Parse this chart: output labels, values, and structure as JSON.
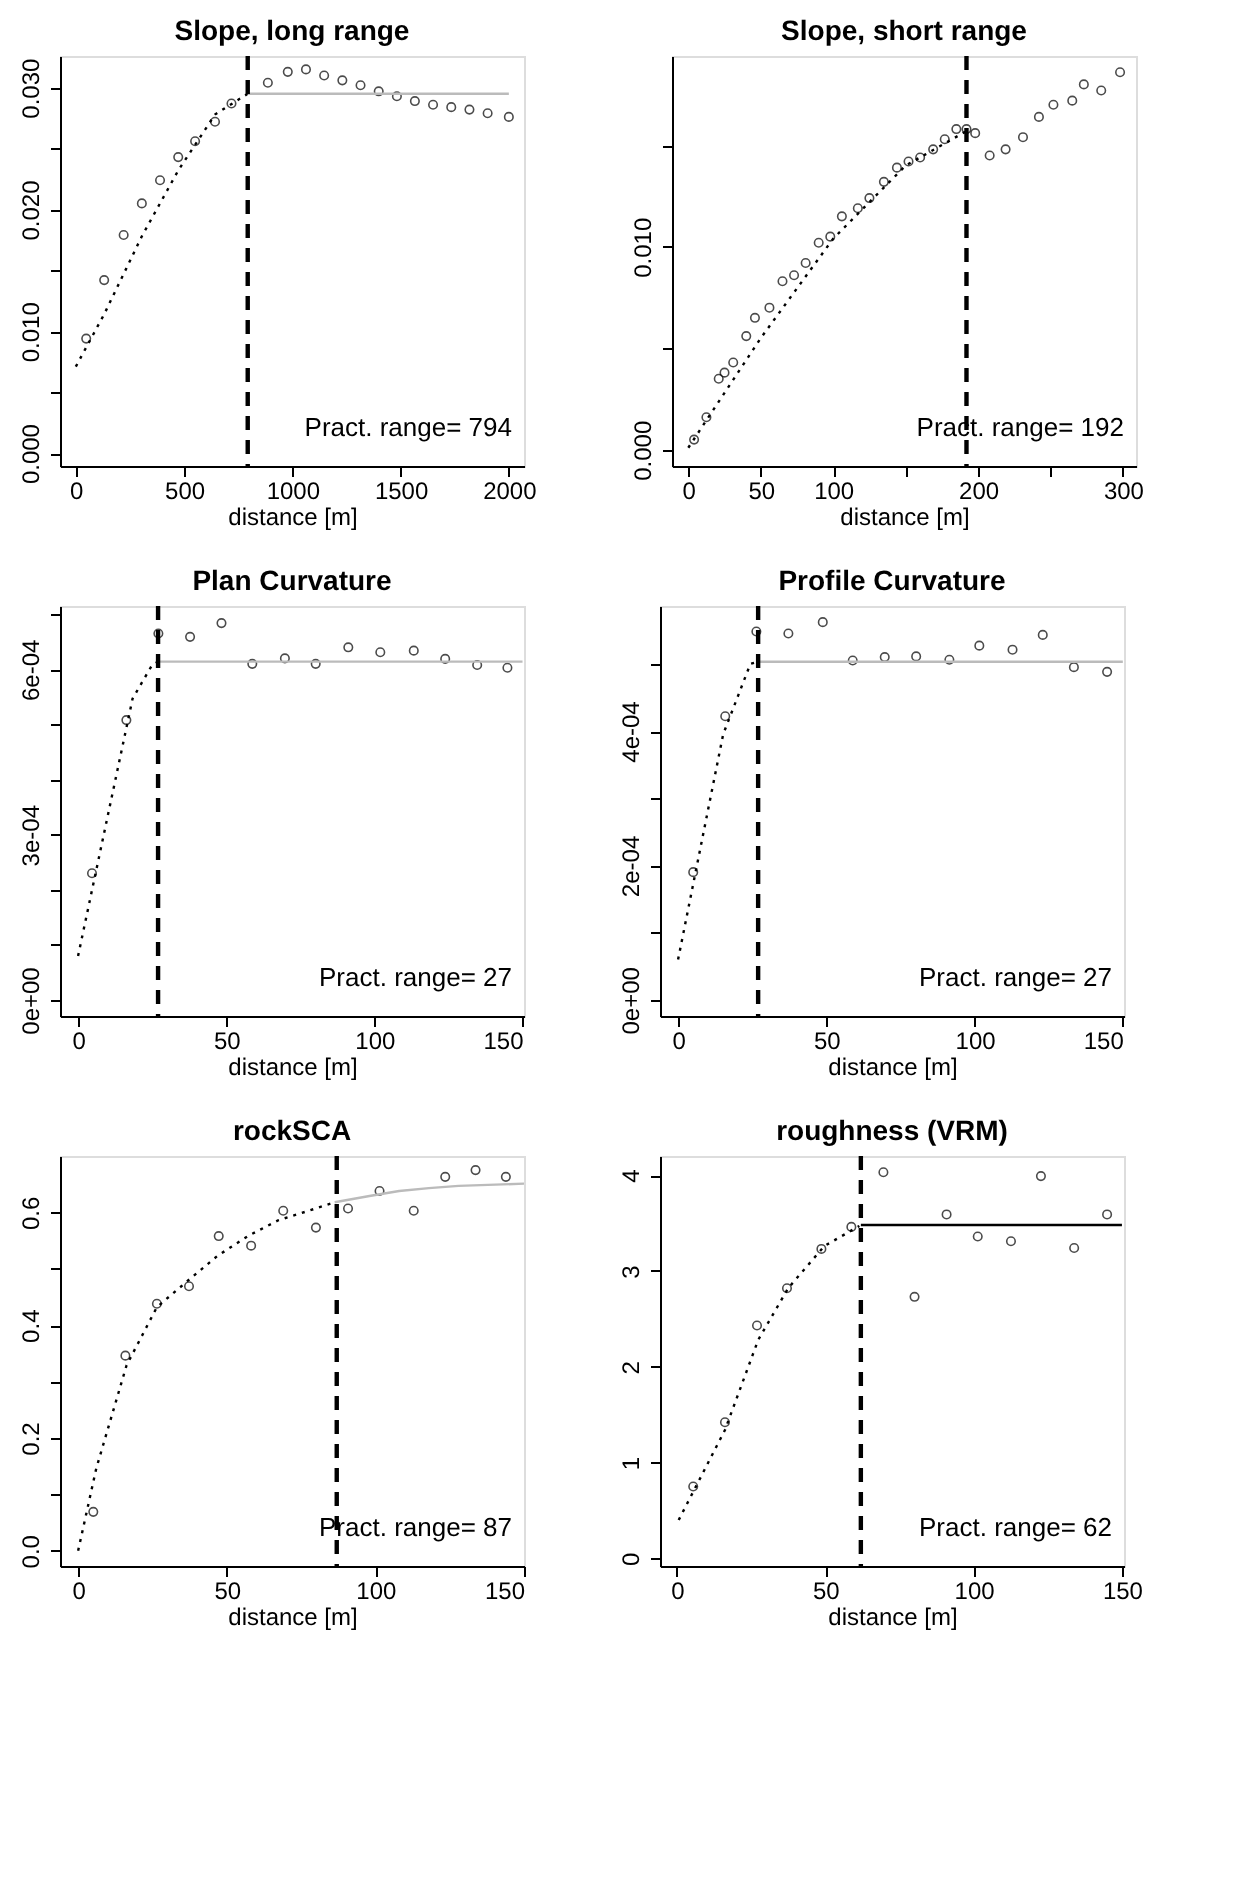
{
  "chart_data": [
    {
      "type": "scatter",
      "title": "Slope, long range",
      "xlabel": "distance [m]",
      "grid": false,
      "legend": false,
      "xlim": [
        -73,
        2070
      ],
      "xticks": [
        0,
        500,
        1000,
        1500,
        2000
      ],
      "ylim": [
        -0.00106,
        0.0326
      ],
      "yticks": [
        {
          "value": 0,
          "label": "0.000"
        },
        {
          "value": 0.005,
          "label": null
        },
        {
          "value": 0.01,
          "label": "0.010"
        },
        {
          "value": 0.015,
          "label": null
        },
        {
          "value": 0.02,
          "label": "0.020"
        },
        {
          "value": 0.025,
          "label": null
        },
        {
          "value": 0.03,
          "label": "0.030"
        }
      ],
      "series": [
        {
          "type": "scatter",
          "color": "#000000",
          "marker": "circle",
          "x": [
            48,
            131,
            221,
            305,
            389,
            473,
            551,
            643,
            719,
            887,
            979,
            1063,
            1147,
            1231,
            1315,
            1399,
            1483,
            1566,
            1650,
            1734,
            1818,
            1902,
            2000
          ],
          "values": [
            0.0094,
            0.0142,
            0.0179,
            0.0205,
            0.0224,
            0.0243,
            0.0256,
            0.0272,
            0.0287,
            0.0304,
            0.0313,
            0.0315,
            0.031,
            0.0306,
            0.0302,
            0.0297,
            0.0293,
            0.0289,
            0.0286,
            0.0284,
            0.0282,
            0.0279,
            0.0276
          ]
        },
        {
          "type": "line",
          "color": "#000000",
          "line_style": "dotted",
          "x": [
            0,
            131,
            305,
            473,
            643,
            794
          ],
          "values": [
            0.0071,
            0.0114,
            0.0178,
            0.0232,
            0.0278,
            0.0295
          ]
        },
        {
          "type": "line",
          "color": "#bbbbbb",
          "line_style": "solid",
          "x": [
            794,
            2000
          ],
          "values": [
            0.0295,
            0.0295
          ]
        }
      ],
      "ref_lines": [
        {
          "axis": "x",
          "value": 794,
          "color": "#000000",
          "line_style": "dashed"
        }
      ],
      "annotations": [
        "Pract. range=  794"
      ]
    },
    {
      "type": "scatter",
      "title": "Slope, short range",
      "xlabel": "distance [m]",
      "grid": false,
      "legend": false,
      "xlim": [
        -11.25,
        309
      ],
      "xticks": [
        0,
        50,
        100,
        {
          "value": 150,
          "label": null
        },
        200,
        {
          "value": 250,
          "label": null
        },
        300
      ],
      "ylim": [
        -0.0008,
        0.0194
      ],
      "yticks": [
        {
          "value": 0,
          "label": "0.000"
        },
        {
          "value": 0.005,
          "label": null
        },
        {
          "value": 0.01,
          "label": "0.010"
        },
        {
          "value": 0.015,
          "label": null
        }
      ],
      "series": [
        {
          "type": "scatter",
          "color": "#000000",
          "marker": "circle",
          "x": [
            4,
            12.5,
            21,
            25,
            31,
            40,
            46,
            56,
            65,
            73,
            81,
            90,
            98,
            106,
            117,
            125,
            135,
            144,
            152,
            160,
            169,
            177,
            185,
            192,
            198,
            208,
            219,
            231,
            242,
            252,
            265,
            273,
            285,
            298
          ],
          "values": [
            0.0005,
            0.0016,
            0.0035,
            0.0038,
            0.0043,
            0.0056,
            0.0065,
            0.007,
            0.0083,
            0.0086,
            0.0092,
            0.0102,
            0.0105,
            0.0115,
            0.0119,
            0.0124,
            0.0132,
            0.0139,
            0.0142,
            0.0144,
            0.0148,
            0.0153,
            0.0158,
            0.0158,
            0.0156,
            0.0145,
            0.0148,
            0.0154,
            0.0164,
            0.017,
            0.0172,
            0.018,
            0.0177,
            0.0186
          ]
        },
        {
          "type": "line",
          "color": "#000000",
          "line_style": "dotted",
          "x": [
            0,
            50,
            100,
            150,
            192
          ],
          "values": [
            0.0001,
            0.0055,
            0.0104,
            0.014,
            0.0157
          ]
        }
      ],
      "ref_lines": [
        {
          "axis": "x",
          "value": 192,
          "color": "#000000",
          "line_style": "dashed"
        }
      ],
      "annotations": [
        "Pract. range=  192"
      ]
    },
    {
      "type": "scatter",
      "title": "Plan Curvature",
      "xlabel": "distance [m]",
      "grid": false,
      "legend": false,
      "xlim": [
        -6.1,
        150.5
      ],
      "xticks": [
        0,
        50,
        100,
        150
      ],
      "ylim": [
        -2.9e-05,
        0.000715
      ],
      "yticks": [
        {
          "value": 0,
          "label": "0e+00"
        },
        {
          "value": 0.0001,
          "label": null
        },
        {
          "value": 0.0002,
          "label": null
        },
        {
          "value": 0.0003,
          "label": "3e-04"
        },
        {
          "value": 0.0004,
          "label": null
        },
        {
          "value": 0.0005,
          "label": null
        },
        {
          "value": 0.0006,
          "label": "6e-04"
        },
        {
          "value": 0.0007,
          "label": null
        }
      ],
      "series": [
        {
          "type": "scatter",
          "color": "#000000",
          "marker": "circle",
          "x": [
            4.7,
            16.3,
            27.1,
            37.8,
            48.4,
            58.8,
            69.8,
            80.2,
            91.2,
            102,
            113.3,
            123.9,
            134.7,
            144.9
          ],
          "values": [
            0.00023,
            0.000508,
            0.000665,
            0.000659,
            0.000684,
            0.00061,
            0.00062,
            0.00061,
            0.00064,
            0.000631,
            0.000634,
            0.000619,
            0.000608,
            0.000603
          ]
        },
        {
          "type": "line",
          "color": "#000000",
          "line_style": "dotted",
          "x": [
            0,
            18.4,
            25,
            27
          ],
          "values": [
            8e-05,
            0.000547,
            0.000608,
            0.000614
          ]
        },
        {
          "type": "line",
          "color": "#bbbbbb",
          "line_style": "solid",
          "x": [
            27,
            150
          ],
          "values": [
            0.000614,
            0.000614
          ]
        }
      ],
      "ref_lines": [
        {
          "axis": "x",
          "value": 27,
          "color": "#000000",
          "line_style": "dashed"
        }
      ],
      "annotations": [
        "Pract. range=  27"
      ]
    },
    {
      "type": "scatter",
      "title": "Profile Curvature",
      "xlabel": "distance [m]",
      "grid": false,
      "legend": false,
      "xlim": [
        -6.1,
        150.4
      ],
      "xticks": [
        0,
        50,
        100,
        150
      ],
      "ylim": [
        -2.4e-05,
        0.000586
      ],
      "yticks": [
        {
          "value": 0,
          "label": "0e+00"
        },
        {
          "value": 0.0001,
          "label": null
        },
        {
          "value": 0.0002,
          "label": "2e-04"
        },
        {
          "value": 0.0003,
          "label": null
        },
        {
          "value": 0.0004,
          "label": "4e-04"
        },
        {
          "value": 0.0005,
          "label": null
        }
      ],
      "series": [
        {
          "type": "scatter",
          "color": "#000000",
          "marker": "circle",
          "x": [
            5.1,
            15.9,
            26.4,
            37.2,
            48.8,
            58.9,
            69.7,
            80.3,
            91.5,
            101.6,
            112.8,
            123,
            133.5,
            144.7
          ],
          "values": [
            0.00019,
            0.000422,
            0.000548,
            0.000545,
            0.000562,
            0.000505,
            0.00051,
            0.000511,
            0.000506,
            0.000527,
            0.000521,
            0.000543,
            0.000495,
            0.000488
          ]
        },
        {
          "type": "line",
          "color": "#000000",
          "line_style": "dotted",
          "x": [
            0,
            15.2,
            24.4,
            27
          ],
          "values": [
            6e-05,
            0.000395,
            0.0005,
            0.000503
          ]
        },
        {
          "type": "line",
          "color": "#bbbbbb",
          "line_style": "solid",
          "x": [
            27,
            150
          ],
          "values": [
            0.000503,
            0.000503
          ]
        }
      ],
      "ref_lines": [
        {
          "axis": "x",
          "value": 27,
          "color": "#000000",
          "line_style": "dashed"
        }
      ],
      "annotations": [
        "Pract. range=  27"
      ]
    },
    {
      "type": "scatter",
      "title": "rockSCA",
      "xlabel": "distance [m]",
      "grid": false,
      "legend": false,
      "xlim": [
        -6.1,
        150
      ],
      "xticks": [
        0,
        50,
        100,
        150
      ],
      "ylim": [
        -0.027,
        0.7
      ],
      "yticks": [
        {
          "value": 0,
          "label": "0.0"
        },
        {
          "value": 0.1,
          "label": null
        },
        {
          "value": 0.2,
          "label": "0.2"
        },
        {
          "value": 0.3,
          "label": null
        },
        {
          "value": 0.4,
          "label": "0.4"
        },
        {
          "value": 0.5,
          "label": null
        },
        {
          "value": 0.6,
          "label": "0.6"
        }
      ],
      "series": [
        {
          "type": "scatter",
          "color": "#000000",
          "marker": "circle",
          "x": [
            5.1,
            15.9,
            26.5,
            37.3,
            47.3,
            58.2,
            69,
            80,
            90.8,
            101.4,
            112.9,
            123.5,
            133.7,
            143.9
          ],
          "values": [
            0.069,
            0.346,
            0.438,
            0.469,
            0.558,
            0.541,
            0.603,
            0.573,
            0.607,
            0.638,
            0.603,
            0.663,
            0.675,
            0.663
          ]
        },
        {
          "type": "line",
          "color": "#000000",
          "line_style": "dotted",
          "x": [
            0,
            6.1,
            16.3,
            26.5,
            36.7,
            46.9,
            57.1,
            67.3,
            77.6,
            86.3
          ],
          "values": [
            0,
            0.146,
            0.329,
            0.432,
            0.478,
            0.523,
            0.558,
            0.586,
            0.603,
            0.618
          ]
        },
        {
          "type": "line",
          "color": "#bbbbbb",
          "line_style": "solid",
          "x": [
            86.3,
            98,
            108,
            118,
            128,
            150
          ],
          "values": [
            0.618,
            0.629,
            0.638,
            0.643,
            0.647,
            0.651
          ]
        }
      ],
      "ref_lines": [
        {
          "axis": "x",
          "value": 87,
          "color": "#000000",
          "line_style": "dashed"
        }
      ],
      "annotations": [
        "Pract. range=  87"
      ]
    },
    {
      "type": "scatter",
      "title": "roughness (VRM)",
      "xlabel": "distance [m]",
      "grid": false,
      "legend": false,
      "xlim": [
        -5.7,
        150.7
      ],
      "xticks": [
        0,
        50,
        100,
        150
      ],
      "ylim": [
        -0.08,
        4.2
      ],
      "yticks": [
        0,
        1,
        2,
        3,
        4
      ],
      "series": [
        {
          "type": "scatter",
          "color": "#000000",
          "marker": "circle",
          "x": [
            5.5,
            16.2,
            27,
            37.1,
            48.7,
            58.8,
            69.6,
            80.1,
            90.9,
            101.4,
            112.6,
            122.7,
            133.9,
            145
          ],
          "values": [
            0.75,
            1.42,
            2.43,
            2.82,
            3.23,
            3.46,
            4.03,
            2.73,
            3.59,
            3.36,
            3.31,
            3.99,
            3.24,
            3.59
          ]
        },
        {
          "type": "line",
          "color": "#000000",
          "line_style": "dotted",
          "x": [
            0.6,
            16.2,
            27.4,
            37.5,
            49.7,
            61.5
          ],
          "values": [
            0.4,
            1.34,
            2.28,
            2.82,
            3.26,
            3.47
          ]
        },
        {
          "type": "line",
          "color": "#000000",
          "line_style": "solid",
          "x": [
            62,
            150
          ],
          "values": [
            3.48,
            3.48
          ]
        }
      ],
      "ref_lines": [
        {
          "axis": "x",
          "value": 62,
          "color": "#000000",
          "line_style": "dashed"
        }
      ],
      "annotations": [
        "Pract. range=  62"
      ]
    }
  ]
}
